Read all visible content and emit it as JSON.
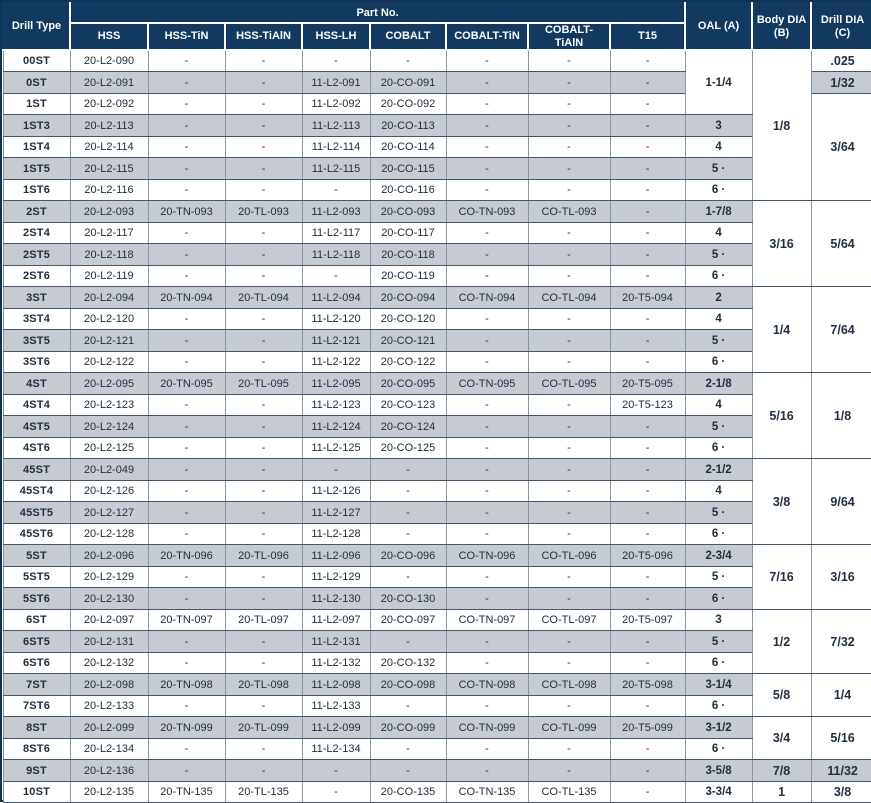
{
  "colors": {
    "header_bg": "#123a60",
    "header_text": "#ffffff",
    "stripe_gray": "#c6cbd2",
    "row_white": "#ffffff",
    "border_dark": "#45586f",
    "border_light": "#8796a7",
    "body_text": "#222e3b"
  },
  "table": {
    "group_header": "Part No.",
    "columns": {
      "drill_type": "Drill Type",
      "hss": "HSS",
      "hss_tin": "HSS-TiN",
      "hss_tialn": "HSS-TiAlN",
      "hss_lh": "HSS-LH",
      "cobalt": "COBALT",
      "cobalt_tin": "COBALT-TiN",
      "cobalt_tialn": "COBALT-TiAlN",
      "t15": "T15",
      "oal": "OAL (A)",
      "body_dia": "Body DIA (B)",
      "drill_dia": "Drill DIA (C)"
    },
    "rows": [
      {
        "type": "00ST",
        "parts": [
          "20-L2-090",
          "-",
          "-",
          "-",
          "-",
          "-",
          "-",
          "-"
        ],
        "oal": "1-1/4",
        "oal_span": 3,
        "body": "1/8",
        "body_span": 7,
        "drill": ".025"
      },
      {
        "type": "0ST",
        "parts": [
          "20-L2-091",
          "-",
          "-",
          "11-L2-091",
          "20-CO-091",
          "-",
          "-",
          "-"
        ],
        "drill": "1/32"
      },
      {
        "type": "1ST",
        "parts": [
          "20-L2-092",
          "-",
          "-",
          "11-L2-092",
          "20-CO-092",
          "-",
          "-",
          "-"
        ],
        "drill": "3/64",
        "drill_span": 5
      },
      {
        "type": "1ST3",
        "parts": [
          "20-L2-113",
          "-",
          "-",
          "11-L2-113",
          "20-CO-113",
          "-",
          "-",
          "-"
        ],
        "oal": "3"
      },
      {
        "type": "1ST4",
        "parts": [
          "20-L2-114",
          "-",
          "-",
          "11-L2-114",
          "20-CO-114",
          "-",
          "-",
          "-"
        ],
        "oal": "4"
      },
      {
        "type": "1ST5",
        "parts": [
          "20-L2-115",
          "-",
          "-",
          "11-L2-115",
          "20-CO-115",
          "-",
          "-",
          "-"
        ],
        "oal": "5 ·"
      },
      {
        "type": "1ST6",
        "parts": [
          "20-L2-116",
          "-",
          "-",
          "-",
          "20-CO-116",
          "-",
          "-",
          "-"
        ],
        "oal": "6 ·"
      },
      {
        "type": "2ST",
        "parts": [
          "20-L2-093",
          "20-TN-093",
          "20-TL-093",
          "11-L2-093",
          "20-CO-093",
          "CO-TN-093",
          "CO-TL-093",
          "-"
        ],
        "oal": "1-7/8",
        "body": "3/16",
        "body_span": 4,
        "drill": "5/64",
        "drill_span": 4
      },
      {
        "type": "2ST4",
        "parts": [
          "20-L2-117",
          "-",
          "-",
          "11-L2-117",
          "20-CO-117",
          "-",
          "-",
          "-"
        ],
        "oal": "4"
      },
      {
        "type": "2ST5",
        "parts": [
          "20-L2-118",
          "-",
          "-",
          "11-L2-118",
          "20-CO-118",
          "-",
          "-",
          "-"
        ],
        "oal": "5 ·"
      },
      {
        "type": "2ST6",
        "parts": [
          "20-L2-119",
          "-",
          "-",
          "-",
          "20-CO-119",
          "-",
          "-",
          "-"
        ],
        "oal": "6 ·"
      },
      {
        "type": "3ST",
        "parts": [
          "20-L2-094",
          "20-TN-094",
          "20-TL-094",
          "11-L2-094",
          "20-CO-094",
          "CO-TN-094",
          "CO-TL-094",
          "20-T5-094"
        ],
        "oal": "2",
        "body": "1/4",
        "body_span": 4,
        "drill": "7/64",
        "drill_span": 4
      },
      {
        "type": "3ST4",
        "parts": [
          "20-L2-120",
          "-",
          "-",
          "11-L2-120",
          "20-CO-120",
          "-",
          "-",
          "-"
        ],
        "oal": "4"
      },
      {
        "type": "3ST5",
        "parts": [
          "20-L2-121",
          "-",
          "-",
          "11-L2-121",
          "20-CO-121",
          "-",
          "-",
          "-"
        ],
        "oal": "5 ·"
      },
      {
        "type": "3ST6",
        "parts": [
          "20-L2-122",
          "-",
          "-",
          "11-L2-122",
          "20-CO-122",
          "-",
          "-",
          "-"
        ],
        "oal": "6 ·"
      },
      {
        "type": "4ST",
        "parts": [
          "20-L2-095",
          "20-TN-095",
          "20-TL-095",
          "11-L2-095",
          "20-CO-095",
          "CO-TN-095",
          "CO-TL-095",
          "20-T5-095"
        ],
        "oal": "2-1/8",
        "body": "5/16",
        "body_span": 4,
        "drill": "1/8",
        "drill_span": 4
      },
      {
        "type": "4ST4",
        "parts": [
          "20-L2-123",
          "-",
          "-",
          "11-L2-123",
          "20-CO-123",
          "-",
          "-",
          "20-T5-123"
        ],
        "oal": "4"
      },
      {
        "type": "4ST5",
        "parts": [
          "20-L2-124",
          "-",
          "-",
          "11-L2-124",
          "20-CO-124",
          "-",
          "-",
          "-"
        ],
        "oal": "5 ·"
      },
      {
        "type": "4ST6",
        "parts": [
          "20-L2-125",
          "-",
          "-",
          "11-L2-125",
          "20-CO-125",
          "-",
          "-",
          "-"
        ],
        "oal": "6 ·"
      },
      {
        "type": "45ST",
        "parts": [
          "20-L2-049",
          "-",
          "-",
          "-",
          "-",
          "-",
          "-",
          "-"
        ],
        "oal": "2-1/2",
        "body": "3/8",
        "body_span": 4,
        "drill": "9/64",
        "drill_span": 4
      },
      {
        "type": "45ST4",
        "parts": [
          "20-L2-126",
          "-",
          "-",
          "11-L2-126",
          "-",
          "-",
          "-",
          "-"
        ],
        "oal": "4"
      },
      {
        "type": "45ST5",
        "parts": [
          "20-L2-127",
          "-",
          "-",
          "11-L2-127",
          "-",
          "-",
          "-",
          "-"
        ],
        "oal": "5 ·"
      },
      {
        "type": "45ST6",
        "parts": [
          "20-L2-128",
          "-",
          "-",
          "11-L2-128",
          "-",
          "-",
          "-",
          "-"
        ],
        "oal": "6 ·"
      },
      {
        "type": "5ST",
        "parts": [
          "20-L2-096",
          "20-TN-096",
          "20-TL-096",
          "11-L2-096",
          "20-CO-096",
          "CO-TN-096",
          "CO-TL-096",
          "20-T5-096"
        ],
        "oal": "2-3/4",
        "body": "7/16",
        "body_span": 3,
        "drill": "3/16",
        "drill_span": 3
      },
      {
        "type": "5ST5",
        "parts": [
          "20-L2-129",
          "-",
          "-",
          "11-L2-129",
          "-",
          "-",
          "-",
          "-"
        ],
        "oal": "5 ·"
      },
      {
        "type": "5ST6",
        "parts": [
          "20-L2-130",
          "-",
          "-",
          "11-L2-130",
          "20-CO-130",
          "-",
          "-",
          "-"
        ],
        "oal": "6 ·"
      },
      {
        "type": "6ST",
        "parts": [
          "20-L2-097",
          "20-TN-097",
          "20-TL-097",
          "11-L2-097",
          "20-CO-097",
          "CO-TN-097",
          "CO-TL-097",
          "20-T5-097"
        ],
        "oal": "3",
        "body": "1/2",
        "body_span": 3,
        "drill": "7/32",
        "drill_span": 3
      },
      {
        "type": "6ST5",
        "parts": [
          "20-L2-131",
          "-",
          "-",
          "11-L2-131",
          "-",
          "-",
          "-",
          "-"
        ],
        "oal": "5 ·"
      },
      {
        "type": "6ST6",
        "parts": [
          "20-L2-132",
          "-",
          "-",
          "11-L2-132",
          "20-CO-132",
          "-",
          "-",
          "-"
        ],
        "oal": "6 ·"
      },
      {
        "type": "7ST",
        "parts": [
          "20-L2-098",
          "20-TN-098",
          "20-TL-098",
          "11-L2-098",
          "20-CO-098",
          "CO-TN-098",
          "CO-TL-098",
          "20-T5-098"
        ],
        "oal": "3-1/4",
        "body": "5/8",
        "body_span": 2,
        "drill": "1/4",
        "drill_span": 2
      },
      {
        "type": "7ST6",
        "parts": [
          "20-L2-133",
          "-",
          "-",
          "11-L2-133",
          "-",
          "-",
          "-",
          "-"
        ],
        "oal": "6 ·"
      },
      {
        "type": "8ST",
        "parts": [
          "20-L2-099",
          "20-TN-099",
          "20-TL-099",
          "11-L2-099",
          "20-CO-099",
          "CO-TN-099",
          "CO-TL-099",
          "20-T5-099"
        ],
        "oal": "3-1/2",
        "body": "3/4",
        "body_span": 2,
        "drill": "5/16",
        "drill_span": 2
      },
      {
        "type": "8ST6",
        "parts": [
          "20-L2-134",
          "-",
          "-",
          "11-L2-134",
          "-",
          "-",
          "-",
          "-"
        ],
        "oal": "6 ·"
      },
      {
        "type": "9ST",
        "parts": [
          "20-L2-136",
          "-",
          "-",
          "-",
          "-",
          "-",
          "-",
          "-"
        ],
        "oal": "3-5/8",
        "body": "7/8",
        "drill": "11/32"
      },
      {
        "type": "10ST",
        "parts": [
          "20-L2-135",
          "20-TN-135",
          "20-TL-135",
          "-",
          "20-CO-135",
          "CO-TN-135",
          "CO-TL-135",
          "-"
        ],
        "oal": "3-3/4",
        "body": "1",
        "drill": "3/8"
      }
    ]
  }
}
